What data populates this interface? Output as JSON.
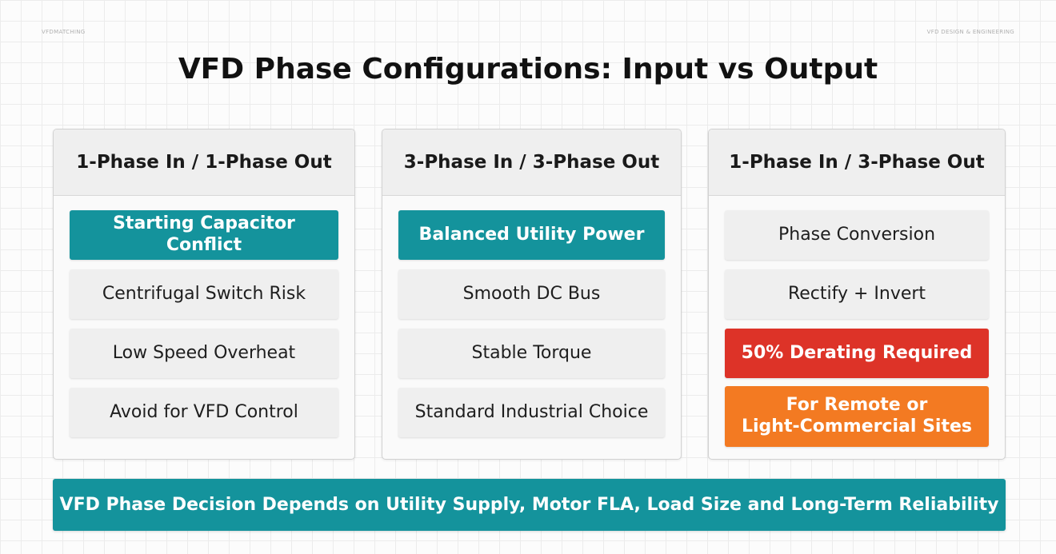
{
  "header": {
    "corner_left": "VFDMATCHING",
    "corner_right": "VFD DESIGN & ENGINEERING",
    "title": "VFD Phase Configurations: Input vs Output"
  },
  "columns": [
    {
      "title": "1-Phase In / 1-Phase Out",
      "items": [
        {
          "label": "Starting Capacitor Conflict",
          "style": "teal"
        },
        {
          "label": "Centrifugal Switch Risk",
          "style": "gray"
        },
        {
          "label": "Low Speed Overheat",
          "style": "gray"
        },
        {
          "label": "Avoid for VFD Control",
          "style": "gray"
        }
      ]
    },
    {
      "title": "3-Phase In / 3-Phase Out",
      "items": [
        {
          "label": "Balanced Utility Power",
          "style": "teal"
        },
        {
          "label": "Smooth DC Bus",
          "style": "gray"
        },
        {
          "label": "Stable Torque",
          "style": "gray"
        },
        {
          "label": "Standard Industrial Choice",
          "style": "gray"
        }
      ]
    },
    {
      "title": "1-Phase In / 3-Phase Out",
      "items": [
        {
          "label": "Phase Conversion",
          "style": "gray"
        },
        {
          "label": "Rectify + Invert",
          "style": "gray"
        },
        {
          "label": "50% Derating Required",
          "style": "red"
        },
        {
          "label": "For Remote or\nLight-Commercial Sites",
          "style": "orange"
        }
      ]
    }
  ],
  "footer": {
    "label": "VFD Phase Decision Depends on Utility Supply, Motor FLA, Load Size and Long-Term Reliability"
  },
  "colors": {
    "teal": "#14939c",
    "red": "#dd3328",
    "orange": "#f37a22",
    "gray": "#efefef"
  }
}
